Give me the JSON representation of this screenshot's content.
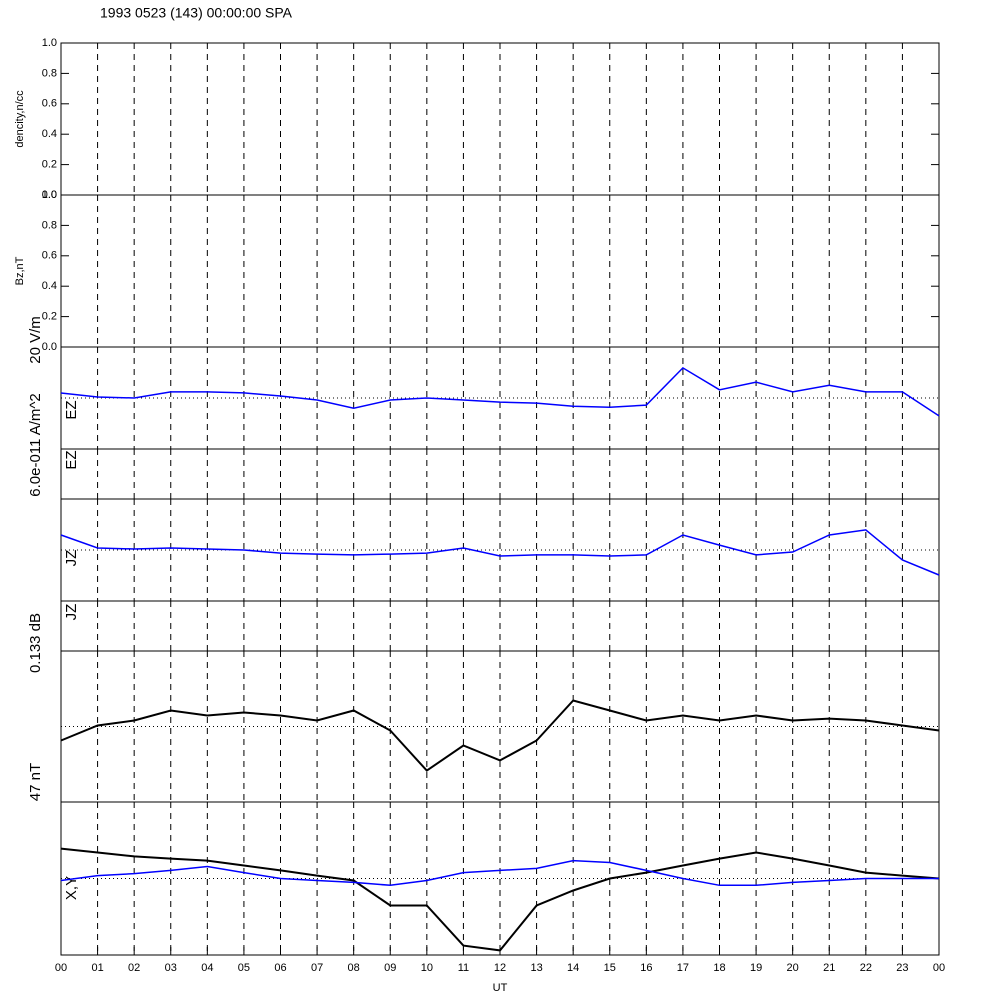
{
  "chart_data": [
    {
      "type": "empty",
      "title": "1993 0523 (143) 00:00:00 SPA",
      "ylabel": "dencity,n/cc",
      "xlim": [
        0,
        24
      ],
      "ylim": [
        0,
        1
      ],
      "grid": true,
      "yticks": [
        {
          "value": 0,
          "label": "0.0"
        },
        {
          "value": 0.2,
          "label": "0.2"
        },
        {
          "value": 0.4,
          "label": "0.4"
        },
        {
          "value": 0.6,
          "label": "0.6"
        },
        {
          "value": 0.8,
          "label": "0.8"
        },
        {
          "value": 1,
          "label": "1.0"
        }
      ]
    },
    {
      "type": "empty",
      "ylabel": "Bz,nT",
      "xlim": [
        0,
        24
      ],
      "ylim": [
        0,
        1
      ],
      "grid": true,
      "yticks": [
        {
          "value": 0,
          "label": "0.0"
        },
        {
          "value": 0.2,
          "label": "0.2"
        },
        {
          "value": 0.4,
          "label": "0.4"
        },
        {
          "value": 0.6,
          "label": "0.6"
        },
        {
          "value": 0.8,
          "label": "0.8"
        },
        {
          "value": 1,
          "label": "1.0"
        }
      ]
    },
    {
      "type": "line",
      "scale_label": "20 V/m",
      "ylabel": "EZ",
      "xlim": [
        0,
        24
      ],
      "ylim": [
        -10,
        10
      ],
      "grid": true,
      "x": [
        0,
        1,
        2,
        3,
        4,
        5,
        6,
        7,
        8,
        9,
        10,
        11,
        12,
        13,
        14,
        15,
        16,
        17,
        18,
        19,
        20,
        21,
        22,
        23,
        24
      ],
      "series": [
        {
          "color": "#0000ff",
          "values": [
            0.98,
            0.2,
            0,
            1.2,
            1.2,
            1.0,
            0.4,
            -0.4,
            -2.0,
            -0.4,
            0,
            -0.4,
            -0.8,
            -1.0,
            -1.6,
            -1.8,
            -1.4,
            5.9,
            1.6,
            3.1,
            1.2,
            2.5,
            1.2,
            1.2,
            -3.5
          ]
        }
      ]
    },
    {
      "type": "empty",
      "ylabel": "EZ",
      "xlim": [
        0,
        24
      ],
      "grid": true
    },
    {
      "type": "line",
      "scale_label": "6.0e-011 A/m^2",
      "ylabel": "JZ",
      "xlim": [
        0,
        24
      ],
      "ylim": [
        -3e-11,
        3e-11
      ],
      "grid": true,
      "x": [
        0,
        1,
        2,
        3,
        4,
        5,
        6,
        7,
        8,
        9,
        10,
        11,
        12,
        13,
        14,
        15,
        16,
        17,
        18,
        19,
        20,
        21,
        22,
        23,
        24
      ],
      "series": [
        {
          "color": "#0000ff",
          "values": [
            8.8e-12,
            1.2e-12,
            6e-13,
            1.2e-12,
            6e-13,
            0,
            -1.8e-12,
            -2.4e-12,
            -2.9e-12,
            -2.4e-12,
            -1.8e-12,
            1.2e-12,
            -3.5e-12,
            -2.9e-12,
            -2.9e-12,
            -3.5e-12,
            -2.9e-12,
            8.8e-12,
            2.9e-12,
            -2.9e-12,
            -1.2e-12,
            8.8e-12,
            1.18e-11,
            -5.9e-12,
            -1.47e-11
          ]
        }
      ]
    },
    {
      "type": "empty",
      "ylabel": "JZ",
      "xlim": [
        0,
        24
      ],
      "grid": true
    },
    {
      "type": "line",
      "scale_label": "0.133 dB",
      "xlim": [
        0,
        24
      ],
      "ylim": [
        -0.0665,
        0.0665
      ],
      "grid": true,
      "x": [
        0,
        1,
        2,
        3,
        4,
        5,
        6,
        7,
        8,
        9,
        10,
        11,
        12,
        13,
        14,
        15,
        16,
        17,
        18,
        19,
        20,
        21,
        22,
        23,
        24
      ],
      "series": [
        {
          "color": "#000000",
          "values": [
            -0.0123,
            0.0009,
            0.0053,
            0.0141,
            0.0097,
            0.0123,
            0.0097,
            0.0053,
            0.0141,
            -0.0035,
            -0.0388,
            -0.0167,
            -0.0299,
            -0.0123,
            0.0229,
            0.0141,
            0.0053,
            0.0097,
            0.0053,
            0.0097,
            0.0053,
            0.007,
            0.0053,
            0.0009,
            -0.0035
          ]
        }
      ]
    },
    {
      "type": "line",
      "scale_label": "47 nT",
      "ylabel": "X,Y",
      "xlabel": "UT",
      "xlim": [
        0,
        24
      ],
      "ylim": [
        -23.5,
        23.5
      ],
      "grid": true,
      "x": [
        0,
        1,
        2,
        3,
        4,
        5,
        6,
        7,
        8,
        9,
        10,
        11,
        12,
        13,
        14,
        15,
        16,
        17,
        18,
        19,
        20,
        21,
        22,
        23,
        24
      ],
      "xticks": [
        {
          "value": 0,
          "label": "00"
        },
        {
          "value": 1,
          "label": "01"
        },
        {
          "value": 2,
          "label": "02"
        },
        {
          "value": 3,
          "label": "03"
        },
        {
          "value": 4,
          "label": "04"
        },
        {
          "value": 5,
          "label": "05"
        },
        {
          "value": 6,
          "label": "06"
        },
        {
          "value": 7,
          "label": "07"
        },
        {
          "value": 8,
          "label": "08"
        },
        {
          "value": 9,
          "label": "09"
        },
        {
          "value": 10,
          "label": "10"
        },
        {
          "value": 11,
          "label": "11"
        },
        {
          "value": 12,
          "label": "12"
        },
        {
          "value": 13,
          "label": "13"
        },
        {
          "value": 14,
          "label": "14"
        },
        {
          "value": 15,
          "label": "15"
        },
        {
          "value": 16,
          "label": "16"
        },
        {
          "value": 17,
          "label": "17"
        },
        {
          "value": 18,
          "label": "18"
        },
        {
          "value": 19,
          "label": "19"
        },
        {
          "value": 20,
          "label": "20"
        },
        {
          "value": 21,
          "label": "21"
        },
        {
          "value": 22,
          "label": "22"
        },
        {
          "value": 23,
          "label": "23"
        },
        {
          "value": 24,
          "label": "00"
        }
      ],
      "series": [
        {
          "color": "#000000",
          "values": [
            9.2,
            8.0,
            6.8,
            6.1,
            5.5,
            4.0,
            2.5,
            0.9,
            -0.6,
            -8.3,
            -8.3,
            -20.6,
            -22.1,
            -8.3,
            -3.7,
            0,
            1.8,
            4.0,
            6.1,
            8.0,
            6.1,
            4.0,
            1.8,
            0.9,
            0
          ]
        },
        {
          "color": "#0000ff",
          "values": [
            -0.6,
            0.9,
            1.5,
            2.5,
            3.7,
            1.8,
            0,
            -0.6,
            -1.2,
            -2.1,
            -0.6,
            1.8,
            2.5,
            3.1,
            5.5,
            4.9,
            2.5,
            0,
            -2.1,
            -2.1,
            -1.2,
            -0.6,
            0,
            0,
            0
          ]
        }
      ]
    }
  ]
}
